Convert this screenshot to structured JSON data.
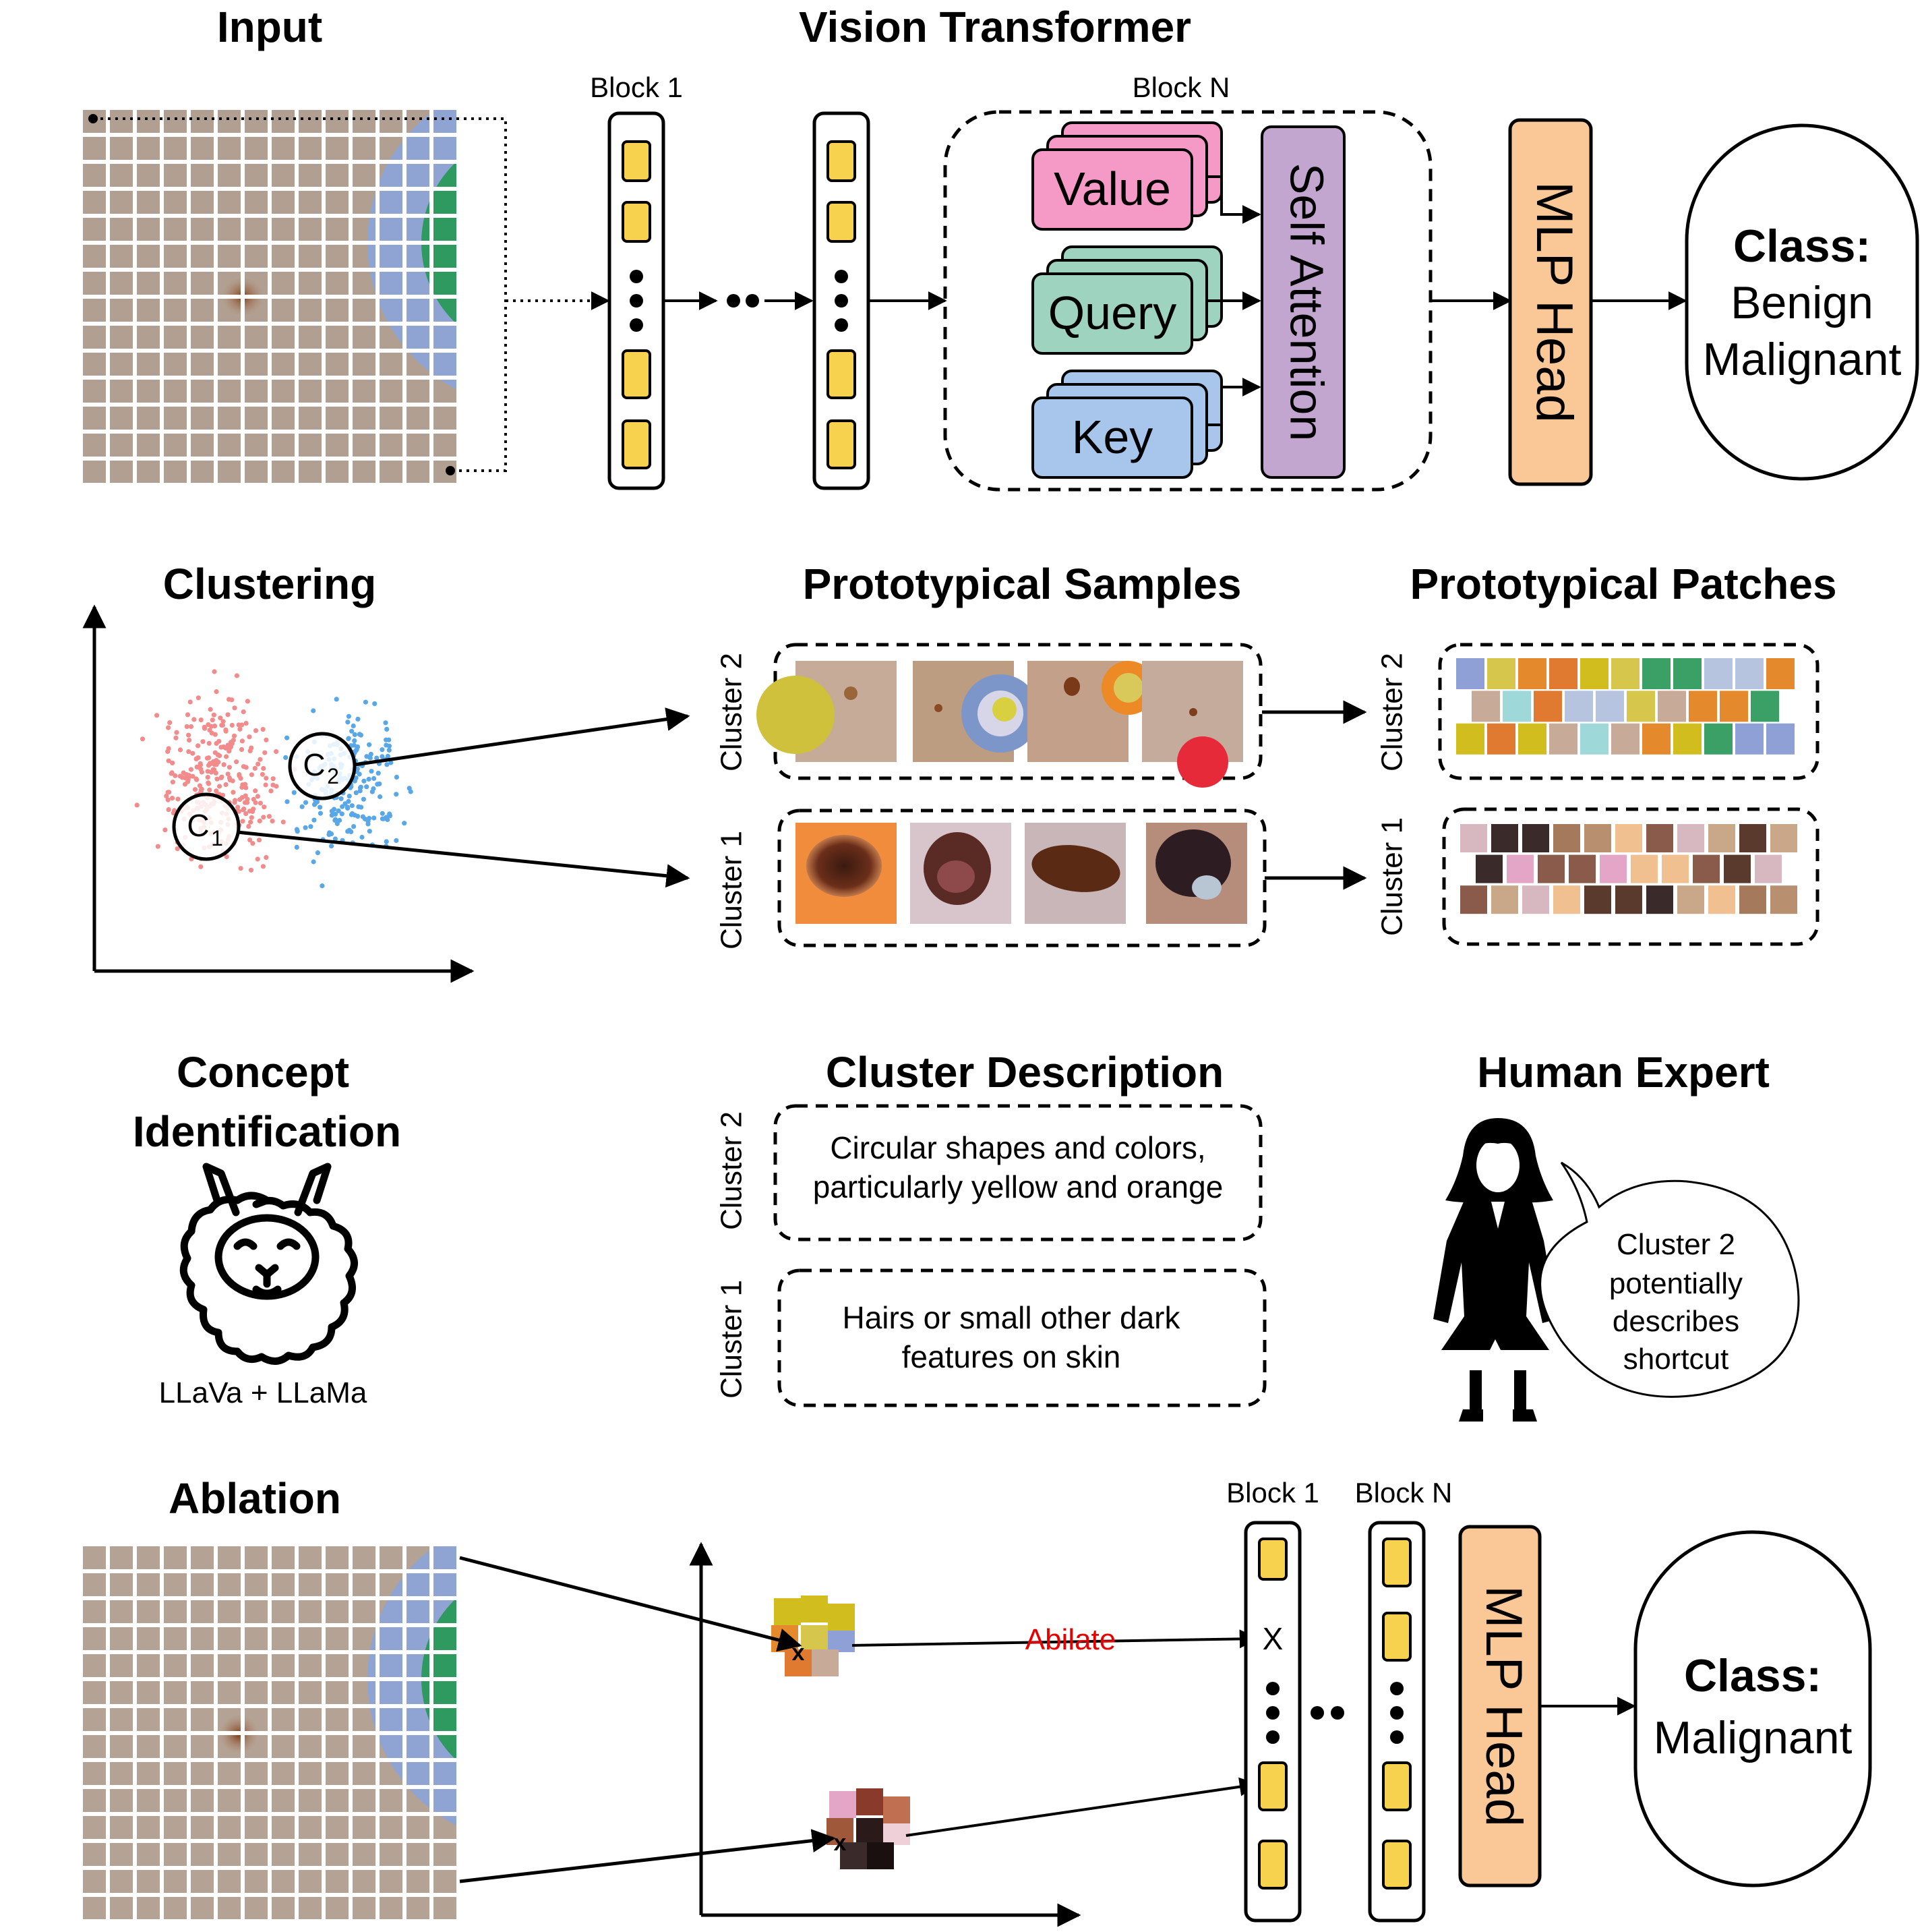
{
  "sections": {
    "input": "Input",
    "vit": "Vision Transformer",
    "clustering": "Clustering",
    "proto_samples": "Prototypical Samples",
    "proto_patches": "Prototypical Patches",
    "concept_l1": "Concept",
    "concept_l2": "Identification",
    "cluster_desc": "Cluster Description",
    "human_expert": "Human Expert",
    "ablation": "Ablation"
  },
  "vit": {
    "block1": "Block 1",
    "blockN": "Block N",
    "value": "Value",
    "query": "Query",
    "key": "Key",
    "self_attention": "Self Attention",
    "mlp_head": "MLP Head",
    "class_label": "Class:",
    "class_opt1": "Benign",
    "class_opt2": "Malignant"
  },
  "clusters": {
    "c1": "C",
    "c1_sub": "1",
    "c2": "C",
    "c2_sub": "2",
    "cluster1": "Cluster 1",
    "cluster2": "Cluster 2"
  },
  "description": {
    "cluster2_l1": "Circular shapes and colors,",
    "cluster2_l2": "particularly yellow and orange",
    "cluster1_l1": "Hairs or small other dark",
    "cluster1_l2": "features on skin"
  },
  "llm": {
    "label": "LLaVa + LLaMa"
  },
  "expert": {
    "speech_l1": "Cluster 2",
    "speech_l2": "potentially",
    "speech_l3": "describes",
    "speech_l4": "shortcut"
  },
  "ablation": {
    "block1": "Block 1",
    "blockN": "Block N",
    "ablate_label": "Abilate",
    "x_mark": "X",
    "mlp_head": "MLP Head",
    "class_label": "Class:",
    "class_value": "Malignant"
  },
  "colors": {
    "token": "#f6d24f",
    "value": "#f59ac7",
    "query": "#9ed3c0",
    "key": "#a8c6ec",
    "attention": "#c3a6d0",
    "mlp": "#f9c896",
    "ablate_text": "#e60000",
    "cluster1_points": "#f28c8c",
    "cluster2_points": "#5aa7e8"
  }
}
